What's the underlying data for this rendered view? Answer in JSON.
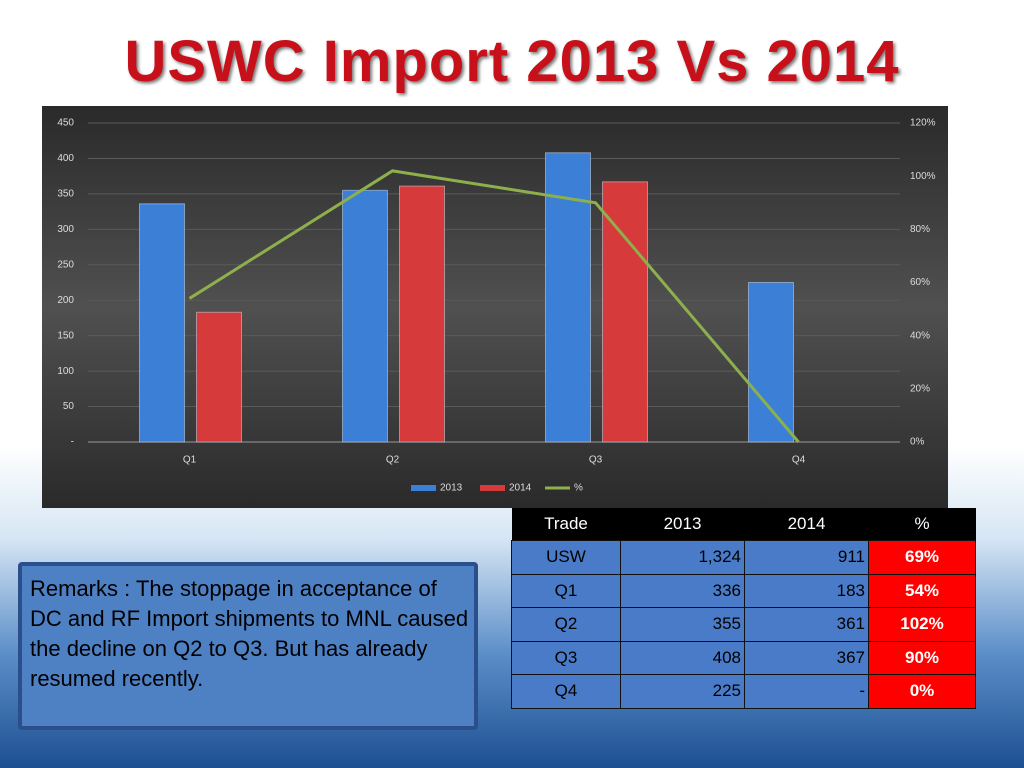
{
  "title": "USWC Import 2013 Vs 2014",
  "chart_data": {
    "type": "bar",
    "categories": [
      "Q1",
      "Q2",
      "Q3",
      "Q4"
    ],
    "series": [
      {
        "name": "2013",
        "color": "#3b7fd6",
        "values": [
          336,
          355,
          408,
          225
        ]
      },
      {
        "name": "2014",
        "color": "#d63a3a",
        "values": [
          183,
          361,
          367,
          0
        ]
      },
      {
        "name": "%",
        "color": "#8db04c",
        "type": "line",
        "axis": "y2",
        "values": [
          54,
          102,
          90,
          0
        ]
      }
    ],
    "ylim": [
      0,
      450
    ],
    "yticks": [
      {
        "value": 0,
        "label": "-"
      },
      50,
      100,
      150,
      200,
      250,
      300,
      350,
      400,
      450
    ],
    "y2lim": [
      0,
      120
    ],
    "y2ticks": [
      {
        "value": 0,
        "label": "0%"
      },
      {
        "value": 20,
        "label": "20%"
      },
      {
        "value": 40,
        "label": "40%"
      },
      {
        "value": 60,
        "label": "60%"
      },
      {
        "value": 80,
        "label": "80%"
      },
      {
        "value": 100,
        "label": "100%"
      },
      {
        "value": 120,
        "label": "120%"
      }
    ],
    "grid": true,
    "legend": "bottom"
  },
  "table": {
    "header": [
      "Trade",
      "2013",
      "2014",
      "%"
    ],
    "rows": [
      [
        "USW",
        "1,324",
        "911",
        "69%"
      ],
      [
        "Q1",
        "336",
        "183",
        "54%"
      ],
      [
        "Q2",
        "355",
        "361",
        "102%"
      ],
      [
        "Q3",
        "408",
        "367",
        "90%"
      ],
      [
        "Q4",
        "225",
        "-",
        "0%"
      ]
    ]
  },
  "remarks": "Remarks : The stoppage in acceptance of DC and RF Import shipments to MNL caused the decline on Q2 to Q3. But has already resumed recently."
}
